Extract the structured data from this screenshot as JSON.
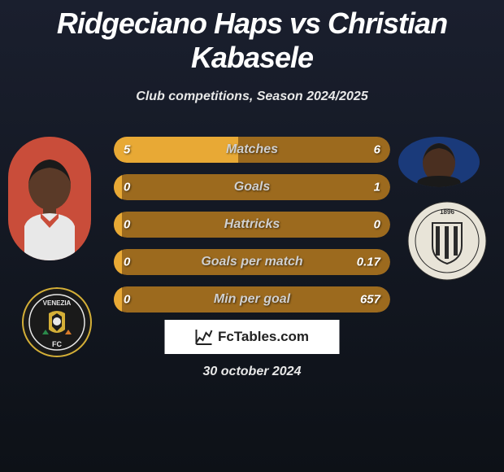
{
  "title": "Ridgeciano Haps vs Christian Kabasele",
  "subtitle": "Club competitions, Season 2024/2025",
  "footer_site": "FcTables.com",
  "date": "30 october 2024",
  "colors": {
    "bar_bg": "#9c6a1e",
    "bar_fill": "#e8a935",
    "bar_label": "#d0d0d0",
    "title": "#ffffff"
  },
  "player_left": {
    "name": "Ridgeciano Haps",
    "club": "Venezia FC",
    "avatar_bg": "#c94d3a",
    "skin": "#5a3a28",
    "shirt": "#e8e8e8"
  },
  "player_right": {
    "name": "Christian Kabasele",
    "club": "Udinese",
    "avatar_bg": "#1a3a7a",
    "skin": "#4a2f20",
    "shirt": "#1a1a1a"
  },
  "club_left": {
    "bg": "#1a1a1a",
    "accent1": "#d4af37",
    "accent2": "#e8e8e8",
    "label": "VENEZIA"
  },
  "club_right": {
    "bg": "#e8e4d8",
    "accent": "#2a2a2a",
    "year": "1896"
  },
  "bars": [
    {
      "label": "Matches",
      "left": "5",
      "right": "6",
      "fill_pct": 45
    },
    {
      "label": "Goals",
      "left": "0",
      "right": "1",
      "fill_pct": 3
    },
    {
      "label": "Hattricks",
      "left": "0",
      "right": "0",
      "fill_pct": 3
    },
    {
      "label": "Goals per match",
      "left": "0",
      "right": "0.17",
      "fill_pct": 3
    },
    {
      "label": "Min per goal",
      "left": "0",
      "right": "657",
      "fill_pct": 3
    }
  ]
}
